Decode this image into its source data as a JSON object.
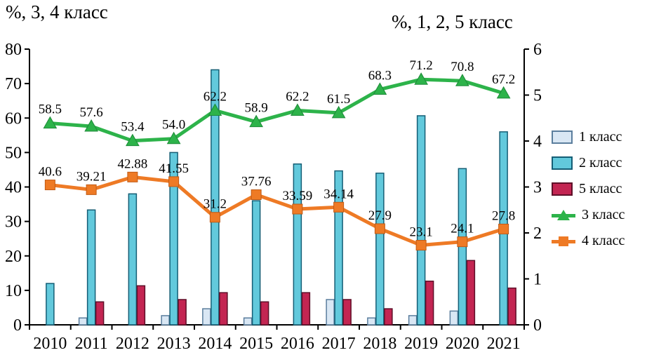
{
  "titles": {
    "left_axis_title": "%, 3, 4 класс",
    "right_axis_title": "%, 1, 2, 5 класс"
  },
  "legend": {
    "items": [
      {
        "label": "1 класс",
        "type": "bar",
        "color": "#d9e7f4",
        "stroke": "#5b7e9d"
      },
      {
        "label": "2 класс",
        "type": "bar",
        "color": "#62c9dc",
        "stroke": "#155e75"
      },
      {
        "label": "5 класс",
        "type": "bar",
        "color": "#c32552",
        "stroke": "#5e0f28"
      },
      {
        "label": "3 класс",
        "type": "line",
        "color": "#2db34a",
        "marker": "triangle"
      },
      {
        "label": "4 класс",
        "type": "line",
        "color": "#ee7a25",
        "marker": "square"
      }
    ]
  },
  "chart_data": {
    "type": "combo: grouped bars (right axis) + lines with markers (left axis)",
    "categories": [
      "2010",
      "2011",
      "2012",
      "2013",
      "2014",
      "2015",
      "2016",
      "2017",
      "2018",
      "2019",
      "2020",
      "2021"
    ],
    "left_axis": {
      "title": "%, 3, 4 класс",
      "min": 0,
      "max": 80,
      "ticks": [
        "0",
        "10",
        "20",
        "30",
        "40",
        "50",
        "60",
        "70",
        "80"
      ]
    },
    "right_axis": {
      "title": "%, 1, 2, 5 класс",
      "min": 0,
      "max": 6,
      "ticks": [
        "0",
        "1",
        "2",
        "3",
        "4",
        "5",
        "6"
      ]
    },
    "grid": "off",
    "legend_position": "right",
    "series": [
      {
        "name": "1 класс",
        "type": "bar",
        "axis": "right",
        "color": "#d9e7f4",
        "stroke": "#5b7e9d",
        "values": [
          0,
          0.15,
          0,
          0.2,
          0.35,
          0.15,
          0,
          0.55,
          0.15,
          0.2,
          0.3,
          0
        ]
      },
      {
        "name": "2 класс",
        "type": "bar",
        "axis": "right",
        "color": "#62c9dc",
        "stroke": "#155e75",
        "values": [
          0.9,
          2.5,
          2.85,
          3.75,
          5.55,
          2.7,
          3.5,
          3.35,
          3.3,
          4.55,
          3.4,
          4.2
        ]
      },
      {
        "name": "5 класс",
        "type": "bar",
        "axis": "right",
        "color": "#c32552",
        "stroke": "#5e0f28",
        "values": [
          0,
          0.5,
          0.85,
          0.55,
          0.7,
          0.5,
          0.7,
          0.55,
          0.35,
          0.95,
          1.4,
          0.8
        ]
      },
      {
        "name": "3 класс",
        "type": "line",
        "axis": "left",
        "color": "#2db34a",
        "stroke": "#1d8a38",
        "marker": "triangle",
        "values": [
          58.5,
          57.6,
          53.4,
          54.0,
          62.2,
          58.9,
          62.2,
          61.5,
          68.3,
          71.2,
          70.8,
          67.2
        ],
        "labels": [
          "58.5",
          "57.6",
          "53.4",
          "54.0",
          "62.2",
          "58.9",
          "62.2",
          "61.5",
          "68.3",
          "71.2",
          "70.8",
          "67.2"
        ]
      },
      {
        "name": "4 класс",
        "type": "line",
        "axis": "left",
        "color": "#ee7a25",
        "stroke": "#c05a14",
        "marker": "square",
        "values": [
          40.6,
          39.21,
          42.88,
          41.55,
          31.2,
          37.76,
          33.59,
          34.14,
          27.9,
          23.1,
          24.1,
          27.8
        ],
        "labels": [
          "40.6",
          "39.21",
          "42.88",
          "41.55",
          "31.2",
          "37.76",
          "33.59",
          "34.14",
          "27.9",
          "23.1",
          "24.1",
          "27.8"
        ]
      }
    ]
  }
}
